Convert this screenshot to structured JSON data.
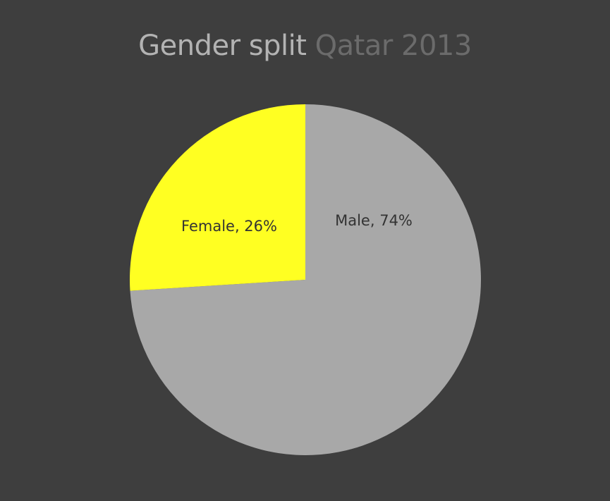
{
  "colors": {
    "background": "#3e3e3e",
    "female": "#ffff22",
    "male": "#a8a8a8",
    "title_main": "#b3b3b3",
    "title_sub": "#6b6b6b",
    "label": "#333333"
  },
  "chart_data": {
    "type": "pie",
    "title": "Gender split",
    "subtitle": "Qatar 2013",
    "slices": [
      {
        "label": "Male, 74%",
        "value": 74,
        "color": "#a8a8a8"
      },
      {
        "label": "Female, 26%",
        "value": 26,
        "color": "#ffff22"
      }
    ],
    "start_angle_deg": 0,
    "direction": "clockwise",
    "legend": "none"
  }
}
